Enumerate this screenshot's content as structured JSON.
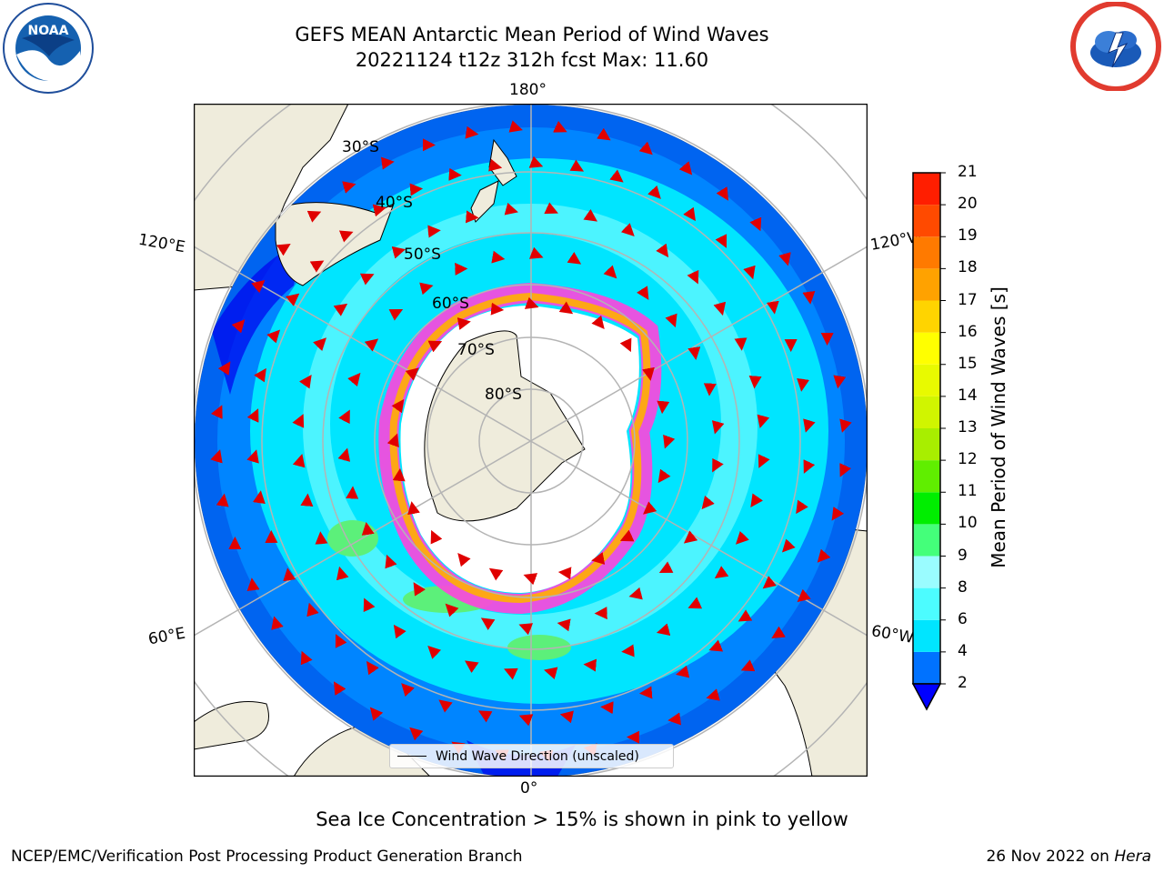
{
  "title_line1": "GEFS MEAN Antarctic Mean Period of Wind Waves",
  "title_line2": "20221124 t12z 312h fcst   Max: 11.60",
  "logos": {
    "left": "NOAA",
    "right": "NATIONAL WEATHER SERVICE"
  },
  "map": {
    "longitude_labels": {
      "top": "180°",
      "bottom": "0°",
      "left_upper": "120°E",
      "left_lower": "60°E",
      "right_upper": "120°W",
      "right_lower": "60°W"
    },
    "latitude_labels": [
      "30°S",
      "40°S",
      "50°S",
      "60°S",
      "70°S",
      "80°S"
    ],
    "legend_label": "Wind Wave Direction (unscaled)"
  },
  "colorbar": {
    "label": "Mean Period of Wind Waves [s]",
    "ticks": [
      "2",
      "4",
      "6",
      "8",
      "9",
      "10",
      "11",
      "12",
      "13",
      "14",
      "15",
      "16",
      "17",
      "18",
      "19",
      "20",
      "21"
    ],
    "colors": [
      "#0000ff",
      "#0072ff",
      "#00e5ff",
      "#4cfcff",
      "#9afcff",
      "#44ff7a",
      "#00ee00",
      "#60ee00",
      "#a8ee00",
      "#d0f500",
      "#e8fa00",
      "#ffff00",
      "#ffd400",
      "#ffa200",
      "#ff7a00",
      "#ff4a00",
      "#ff1e00",
      "#ff0000"
    ]
  },
  "caption": "Sea Ice Concentration > 15% is shown in pink to yellow",
  "footer_left": "NCEP/EMC/Verification Post Processing Product Generation Branch",
  "footer_right_prefix": "26 Nov 2022 on ",
  "footer_right_host": "Hera"
}
